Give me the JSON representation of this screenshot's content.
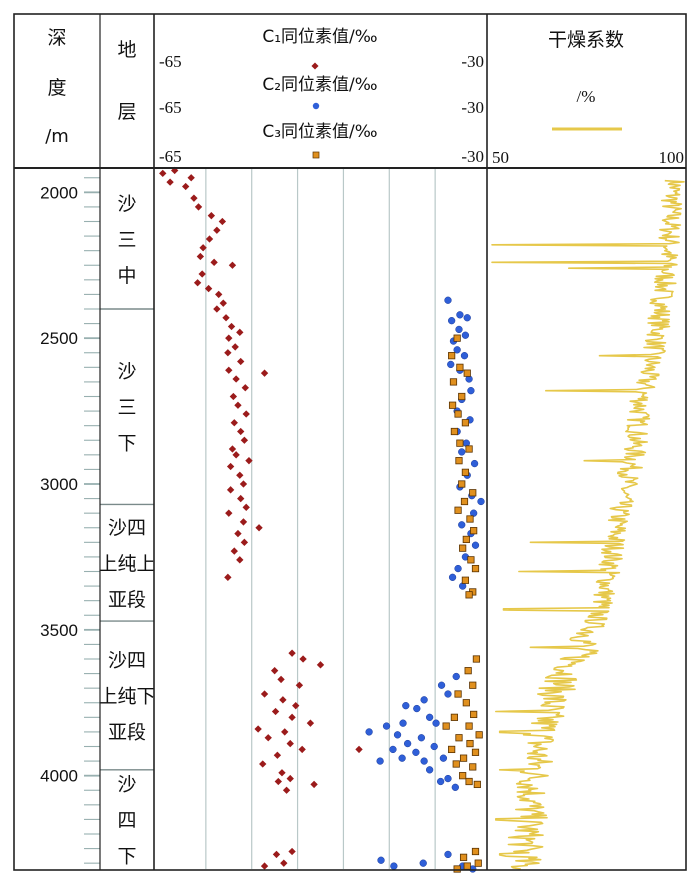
{
  "header": {
    "depth_lines": [
      "深",
      "度",
      "/m"
    ],
    "strata_lines": [
      "地",
      "层"
    ],
    "c1_label": "C₁同位素值/‰",
    "c2_label": "C₂同位素值/‰",
    "c3_label": "C₃同位素值/‰",
    "iso_min": "-65",
    "iso_max": "-30",
    "dryness_title": "干燥系数",
    "dryness_unit": "/%",
    "dryness_min": "50",
    "dryness_max": "100"
  },
  "strata": [
    {
      "label_lines": [
        "沙",
        "三",
        "中"
      ],
      "top": 1920,
      "bottom": 2400
    },
    {
      "label_lines": [
        "沙",
        "三",
        "下"
      ],
      "top": 2400,
      "bottom": 3070
    },
    {
      "label_lines": [
        "沙四",
        "上纯上",
        "亚段"
      ],
      "top": 3070,
      "bottom": 3470
    },
    {
      "label_lines": [
        "沙四",
        "上纯下",
        "亚段"
      ],
      "top": 3470,
      "bottom": 3980
    },
    {
      "label_lines": [
        "沙",
        "四",
        "下"
      ],
      "top": 3980,
      "bottom": 4320
    }
  ],
  "colors": {
    "c1": "#9b1b1b",
    "c2": "#2f5fd8",
    "c3": "#e0901e",
    "c3_edge": "#5a3200",
    "dryness": "#e6c84a",
    "grid": "#b9c8c8"
  },
  "chart_data": [
    {
      "type": "scatter",
      "ylabel": "深度/m",
      "xlabel": "同位素值/‰",
      "y_ticks": [
        2000,
        2500,
        3000,
        3500,
        4000
      ],
      "ylim": [
        1920,
        4320
      ],
      "xlim": [
        -65,
        -30
      ],
      "y_inverted": true,
      "grid": true,
      "series": [
        {
          "name": "C₁同位素值/‰",
          "marker": "diamond",
          "points": [
            [
              -64.7,
              1935
            ],
            [
              -63.4,
              1925
            ],
            [
              -63.9,
              1965
            ],
            [
              -61.6,
              1950
            ],
            [
              -62.2,
              1980
            ],
            [
              -61.3,
              2020
            ],
            [
              -60.8,
              2050
            ],
            [
              -59.4,
              2080
            ],
            [
              -58.2,
              2100
            ],
            [
              -58.8,
              2130
            ],
            [
              -59.6,
              2160
            ],
            [
              -60.3,
              2190
            ],
            [
              -60.6,
              2220
            ],
            [
              -59.1,
              2240
            ],
            [
              -57.1,
              2250
            ],
            [
              -60.4,
              2280
            ],
            [
              -60.9,
              2310
            ],
            [
              -59.7,
              2330
            ],
            [
              -58.6,
              2350
            ],
            [
              -58.1,
              2380
            ],
            [
              -58.8,
              2400
            ],
            [
              -57.8,
              2430
            ],
            [
              -57.2,
              2460
            ],
            [
              -56.3,
              2480
            ],
            [
              -57.5,
              2500
            ],
            [
              -56.8,
              2530
            ],
            [
              -57.6,
              2550
            ],
            [
              -56.2,
              2580
            ],
            [
              -57.5,
              2610
            ],
            [
              -53.6,
              2620
            ],
            [
              -56.7,
              2640
            ],
            [
              -55.7,
              2670
            ],
            [
              -57.0,
              2700
            ],
            [
              -56.5,
              2730
            ],
            [
              -55.6,
              2760
            ],
            [
              -56.9,
              2790
            ],
            [
              -56.2,
              2820
            ],
            [
              -55.8,
              2850
            ],
            [
              -57.1,
              2880
            ],
            [
              -56.7,
              2900
            ],
            [
              -55.3,
              2920
            ],
            [
              -57.3,
              2940
            ],
            [
              -56.3,
              2970
            ],
            [
              -55.9,
              3000
            ],
            [
              -57.3,
              3020
            ],
            [
              -56.2,
              3050
            ],
            [
              -55.6,
              3080
            ],
            [
              -57.5,
              3100
            ],
            [
              -55.9,
              3130
            ],
            [
              -54.2,
              3150
            ],
            [
              -56.5,
              3170
            ],
            [
              -55.8,
              3200
            ],
            [
              -56.9,
              3230
            ],
            [
              -56.3,
              3260
            ],
            [
              -57.6,
              3320
            ],
            [
              -50.6,
              3580
            ],
            [
              -49.4,
              3600
            ],
            [
              -47.5,
              3620
            ],
            [
              -52.5,
              3640
            ],
            [
              -51.8,
              3670
            ],
            [
              -49.8,
              3690
            ],
            [
              -53.6,
              3720
            ],
            [
              -51.6,
              3740
            ],
            [
              -50.2,
              3760
            ],
            [
              -52.4,
              3780
            ],
            [
              -50.6,
              3800
            ],
            [
              -48.6,
              3820
            ],
            [
              -54.3,
              3840
            ],
            [
              -51.4,
              3850
            ],
            [
              -53.2,
              3870
            ],
            [
              -50.8,
              3890
            ],
            [
              -49.5,
              3910
            ],
            [
              -52.2,
              3930
            ],
            [
              -43.3,
              3910
            ],
            [
              -53.8,
              3960
            ],
            [
              -51.7,
              3990
            ],
            [
              -50.8,
              4010
            ],
            [
              -52.1,
              4020
            ],
            [
              -48.2,
              4030
            ],
            [
              -51.2,
              4050
            ],
            [
              -50.6,
              4260
            ],
            [
              -52.3,
              4270
            ],
            [
              -51.5,
              4300
            ],
            [
              -53.6,
              4310
            ]
          ]
        },
        {
          "name": "C₂同位素值/‰",
          "marker": "circle",
          "points": [
            [
              -33.6,
              2370
            ],
            [
              -32.3,
              2420
            ],
            [
              -33.2,
              2440
            ],
            [
              -31.5,
              2430
            ],
            [
              -32.4,
              2470
            ],
            [
              -31.7,
              2490
            ],
            [
              -33.0,
              2510
            ],
            [
              -32.6,
              2540
            ],
            [
              -31.8,
              2560
            ],
            [
              -33.3,
              2590
            ],
            [
              -32.3,
              2610
            ],
            [
              -31.3,
              2640
            ],
            [
              -31.1,
              2680
            ],
            [
              -32.1,
              2710
            ],
            [
              -32.6,
              2750
            ],
            [
              -31.2,
              2780
            ],
            [
              -32.6,
              2820
            ],
            [
              -31.6,
              2860
            ],
            [
              -32.1,
              2890
            ],
            [
              -30.7,
              2930
            ],
            [
              -31.5,
              2970
            ],
            [
              -32.3,
              3010
            ],
            [
              -31.0,
              3040
            ],
            [
              -30.0,
              3060
            ],
            [
              -30.8,
              3100
            ],
            [
              -32.1,
              3140
            ],
            [
              -31.1,
              3170
            ],
            [
              -30.6,
              3210
            ],
            [
              -31.7,
              3250
            ],
            [
              -32.5,
              3290
            ],
            [
              -33.1,
              3320
            ],
            [
              -32.0,
              3350
            ],
            [
              -32.7,
              3660
            ],
            [
              -34.3,
              3690
            ],
            [
              -33.6,
              3720
            ],
            [
              -36.2,
              3740
            ],
            [
              -37.0,
              3770
            ],
            [
              -38.2,
              3760
            ],
            [
              -35.6,
              3800
            ],
            [
              -34.9,
              3820
            ],
            [
              -38.5,
              3820
            ],
            [
              -40.3,
              3830
            ],
            [
              -42.2,
              3850
            ],
            [
              -39.1,
              3860
            ],
            [
              -36.5,
              3870
            ],
            [
              -38.0,
              3890
            ],
            [
              -35.1,
              3900
            ],
            [
              -37.1,
              3920
            ],
            [
              -39.6,
              3910
            ],
            [
              -41.0,
              3950
            ],
            [
              -38.6,
              3940
            ],
            [
              -36.2,
              3950
            ],
            [
              -34.1,
              3940
            ],
            [
              -35.6,
              3980
            ],
            [
              -33.6,
              4010
            ],
            [
              -34.4,
              4020
            ],
            [
              -32.8,
              4040
            ],
            [
              -33.6,
              4270
            ],
            [
              -40.9,
              4290
            ],
            [
              -36.3,
              4300
            ],
            [
              -39.5,
              4310
            ],
            [
              -32.0,
              4310
            ],
            [
              -30.9,
              4320
            ]
          ]
        },
        {
          "name": "C₃同位素值/‰",
          "marker": "square",
          "points": [
            [
              -32.6,
              2500
            ],
            [
              -33.2,
              2560
            ],
            [
              -32.3,
              2600
            ],
            [
              -31.5,
              2620
            ],
            [
              -33.0,
              2650
            ],
            [
              -32.1,
              2700
            ],
            [
              -33.1,
              2730
            ],
            [
              -32.5,
              2760
            ],
            [
              -31.7,
              2790
            ],
            [
              -32.9,
              2820
            ],
            [
              -32.3,
              2860
            ],
            [
              -31.3,
              2880
            ],
            [
              -32.4,
              2920
            ],
            [
              -31.7,
              2960
            ],
            [
              -32.1,
              3000
            ],
            [
              -30.9,
              3030
            ],
            [
              -31.8,
              3060
            ],
            [
              -32.5,
              3090
            ],
            [
              -31.2,
              3120
            ],
            [
              -30.8,
              3160
            ],
            [
              -31.6,
              3190
            ],
            [
              -32.0,
              3220
            ],
            [
              -31.1,
              3260
            ],
            [
              -30.6,
              3290
            ],
            [
              -31.7,
              3330
            ],
            [
              -30.9,
              3370
            ],
            [
              -31.3,
              3380
            ],
            [
              -30.5,
              3600
            ],
            [
              -31.4,
              3640
            ],
            [
              -30.9,
              3690
            ],
            [
              -32.5,
              3720
            ],
            [
              -31.6,
              3750
            ],
            [
              -30.8,
              3790
            ],
            [
              -32.9,
              3800
            ],
            [
              -33.8,
              3830
            ],
            [
              -31.3,
              3830
            ],
            [
              -30.2,
              3860
            ],
            [
              -32.4,
              3870
            ],
            [
              -31.2,
              3890
            ],
            [
              -33.2,
              3910
            ],
            [
              -30.6,
              3920
            ],
            [
              -31.9,
              3940
            ],
            [
              -32.7,
              3960
            ],
            [
              -30.9,
              3970
            ],
            [
              -32.0,
              4000
            ],
            [
              -31.3,
              4020
            ],
            [
              -30.4,
              4030
            ],
            [
              -30.6,
              4260
            ],
            [
              -31.9,
              4280
            ],
            [
              -30.3,
              4300
            ],
            [
              -31.5,
              4310
            ],
            [
              -32.6,
              4320
            ]
          ]
        }
      ]
    },
    {
      "type": "line",
      "title": "干燥系数",
      "ylabel": "深度/m",
      "xlabel": "/%",
      "ylim": [
        1920,
        4320
      ],
      "xlim": [
        50,
        100
      ],
      "y_inverted": true,
      "trend": [
        [
          1960,
          98
        ],
        [
          2000,
          97
        ],
        [
          2100,
          96.5
        ],
        [
          2200,
          96
        ],
        [
          2300,
          95
        ],
        [
          2400,
          94
        ],
        [
          2500,
          93
        ],
        [
          2600,
          91
        ],
        [
          2700,
          89
        ],
        [
          2800,
          88
        ],
        [
          2900,
          87
        ],
        [
          3000,
          85
        ],
        [
          3100,
          83
        ],
        [
          3200,
          82
        ],
        [
          3300,
          80.5
        ],
        [
          3400,
          79
        ],
        [
          3500,
          76
        ],
        [
          3600,
          72
        ],
        [
          3700,
          67
        ],
        [
          3800,
          64
        ],
        [
          3900,
          62
        ],
        [
          4000,
          61
        ],
        [
          4100,
          60
        ],
        [
          4200,
          59
        ],
        [
          4300,
          58
        ]
      ],
      "noise_amplitude": 3,
      "spikes": [
        [
          2180,
          50
        ],
        [
          2240,
          50
        ],
        [
          2260,
          70
        ],
        [
          2560,
          78
        ],
        [
          2680,
          64
        ],
        [
          2920,
          74
        ],
        [
          3200,
          60
        ],
        [
          3300,
          57
        ],
        [
          3430,
          53
        ],
        [
          3560,
          60
        ],
        [
          3780,
          51
        ],
        [
          3850,
          52
        ],
        [
          3980,
          52
        ],
        [
          4150,
          51
        ],
        [
          4270,
          52
        ]
      ]
    }
  ]
}
